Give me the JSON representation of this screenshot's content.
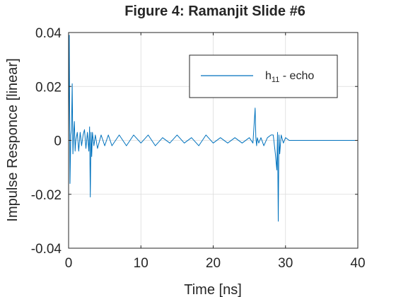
{
  "chart_data": {
    "type": "line",
    "title": "Figure 4: Ramanjit Slide #6",
    "xlabel": "Time [ns]",
    "ylabel": "Impulse Responce [linear]",
    "xlim": [
      0,
      40
    ],
    "ylim": [
      -0.04,
      0.04
    ],
    "xticks": [
      0,
      10,
      20,
      30,
      40
    ],
    "xtick_labels": [
      "0",
      "10",
      "20",
      "30",
      "40"
    ],
    "yticks": [
      -0.04,
      -0.02,
      0,
      0.02,
      0.04
    ],
    "ytick_labels": [
      "-0.04",
      "-0.02",
      "0",
      "0.02",
      "0.04"
    ],
    "grid": true,
    "legend": {
      "placement": "top-right",
      "label_main": "h",
      "label_sub": "11",
      "label_rest": " - echo"
    },
    "series": [
      {
        "name": "h11 - echo",
        "color": "#0072BD",
        "x": [
          0,
          0.1,
          0.2,
          0.3,
          0.4,
          0.5,
          0.6,
          0.7,
          0.8,
          0.9,
          1.0,
          1.2,
          1.4,
          1.6,
          1.8,
          2.0,
          2.2,
          2.4,
          2.6,
          2.8,
          2.9,
          3.0,
          3.1,
          3.2,
          3.3,
          3.5,
          3.7,
          4.0,
          4.5,
          5.0,
          5.5,
          6.0,
          7.0,
          8.0,
          9.0,
          10.0,
          11.0,
          12.0,
          13.0,
          14.0,
          15.0,
          16.0,
          17.0,
          18.0,
          19.0,
          20.0,
          21.0,
          22.0,
          23.0,
          24.0,
          25.0,
          25.5,
          25.8,
          25.9,
          26.0,
          26.1,
          26.3,
          26.6,
          27.0,
          27.5,
          28.0,
          28.3,
          28.6,
          28.8,
          28.9,
          29.0,
          29.1,
          29.2,
          29.4,
          29.7,
          30.0,
          30.5,
          31.0,
          32.0,
          34.0,
          36.0,
          38.0,
          40.0
        ],
        "y": [
          0.0,
          0.039,
          -0.016,
          0.002,
          0.004,
          0.021,
          -0.005,
          0.003,
          0.007,
          -0.004,
          0.0,
          0.003,
          -0.004,
          0.003,
          -0.002,
          0.002,
          0.004,
          -0.003,
          0.003,
          -0.004,
          0.005,
          -0.021,
          0.003,
          -0.006,
          0.003,
          -0.002,
          0.002,
          -0.003,
          0.002,
          -0.002,
          0.002,
          -0.002,
          0.002,
          -0.002,
          0.002,
          -0.001,
          0.002,
          -0.002,
          0.001,
          -0.001,
          0.002,
          -0.001,
          0.001,
          -0.002,
          0.002,
          -0.001,
          0.001,
          -0.001,
          0.001,
          -0.001,
          0.001,
          -0.001,
          0.012,
          0.001,
          -0.002,
          0.001,
          -0.001,
          0.001,
          -0.002,
          0.001,
          0.002,
          0.002,
          -0.005,
          -0.011,
          0.003,
          -0.03,
          0.002,
          -0.005,
          0.002,
          -0.001,
          0.001,
          0.0,
          0.0,
          0.0,
          0.0,
          0.0,
          0.0,
          0.0
        ]
      }
    ]
  }
}
